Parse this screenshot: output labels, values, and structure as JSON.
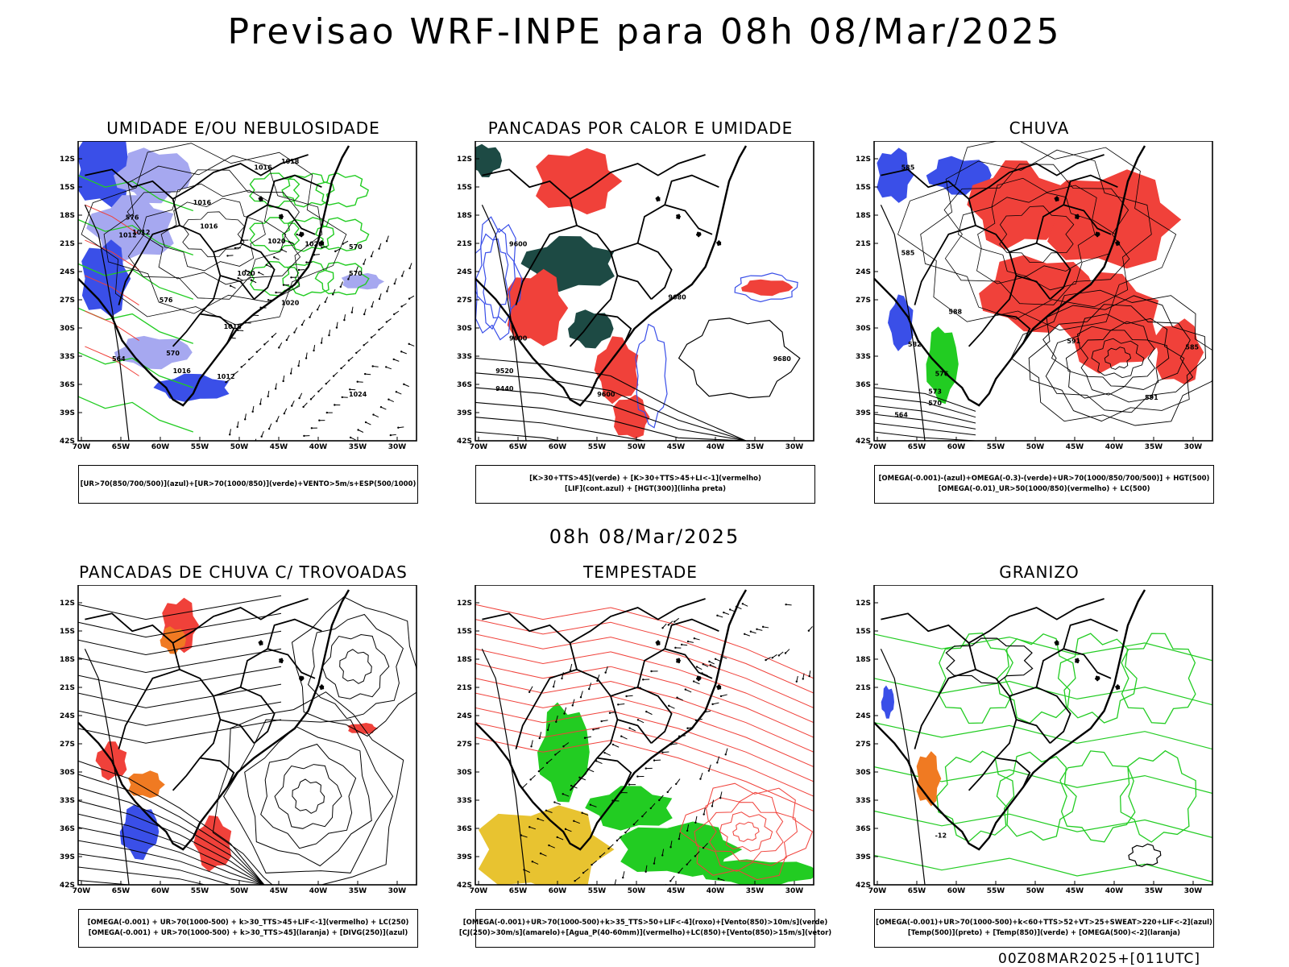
{
  "header": {
    "title": "Previsao WRF-INPE  para 08h 08/Mar/2025",
    "mid_date": "08h 08/Mar/2025",
    "footer_stamp": "00Z08MAR2025+[011UTC]"
  },
  "axes": {
    "lat_labels": [
      "12S",
      "15S",
      "18S",
      "21S",
      "24S",
      "27S",
      "30S",
      "33S",
      "36S",
      "39S",
      "42S"
    ],
    "lon_labels": [
      "70W",
      "65W",
      "60W",
      "55W",
      "50W",
      "45W",
      "40W",
      "35W",
      "30W"
    ]
  },
  "colors": {
    "blue": "#3a4fe8",
    "light_blue": "#a6a8f0",
    "green": "#22cc22",
    "red": "#f0413a",
    "dark_teal": "#1d4a44",
    "orange": "#f07a22",
    "yellow": "#e8c330",
    "purple": "#9b2ad6"
  },
  "panels": [
    {
      "id": "umidade",
      "title": "UMIDADE E/OU NEBULOSIDADE",
      "legend": [
        "[UR>70(850/700/500)](azul)+[UR>70(1000/850)](verde)+VENTO>5m/s+ESP(500/1000)"
      ],
      "labels": [
        "1016",
        "1018",
        "1016",
        "1016",
        "1012",
        "1012",
        "1020",
        "1020",
        "1020",
        "1020",
        "1018",
        "1012",
        "1016",
        "1024",
        "576",
        "570",
        "570",
        "576",
        "570",
        "564"
      ]
    },
    {
      "id": "pancadas_calor",
      "title": "PANCADAS POR CALOR E UMIDADE",
      "legend": [
        "[K>30+TTS>45](verde) + [K>30+TTS>45+LI<-1](vermelho)",
        "[LIF](cont.azul) + [HGT(300)](linha preta)"
      ],
      "labels": [
        "9600",
        "9600",
        "9680",
        "9680",
        "9520",
        "9440",
        "9600"
      ]
    },
    {
      "id": "chuva",
      "title": "CHUVA",
      "legend": [
        "[OMEGA(-0.001)-(azul)+OMEGA(-0.3)-(verde)+UR>70(1000/850/700/500)] + HGT(500)",
        "[OMEGA(-0.01)_UR>50(1000/850)(vermelho) + LC(500)"
      ],
      "labels": [
        "585",
        "585",
        "582",
        "591",
        "588",
        "576",
        "573",
        "570",
        "564",
        "591",
        "585"
      ]
    },
    {
      "id": "pancadas_trovoadas",
      "title": "PANCADAS DE CHUVA C/ TROVOADAS",
      "legend": [
        "[OMEGA(-0.001) + UR>70(1000-500) + k>30_TTS>45+LIF<-1](vermelho) + LC(250)",
        "[OMEGA(-0.001) + UR>70(1000-500) + k>30_TTS>45](laranja) + [DIVG(250)](azul)"
      ],
      "labels": []
    },
    {
      "id": "tempestade",
      "title": "TEMPESTADE",
      "legend": [
        "[OMEGA(-0.001)+UR>70(1000-500)+k>35_TTS>50+LIF<-4](roxo)+[Vento(850)>10m/s](verde)",
        "[CJ(250)>30m/s](amarelo)+[Agua_P(40-60mm)](vermelho)+LC(850)+[Vento(850)>15m/s](vetor)"
      ],
      "labels": []
    },
    {
      "id": "granizo",
      "title": "GRANIZO",
      "legend": [
        "[OMEGA(-0.001)+UR>70(1000-500)+k<60+TTS>52+VT>25+SWEAT>220+LIF<-2](azul)",
        "[Temp(500)](preto) + [Temp(850)](verde) + [OMEGA(500)<-2](laranja)"
      ],
      "labels": [
        "-12"
      ]
    }
  ]
}
